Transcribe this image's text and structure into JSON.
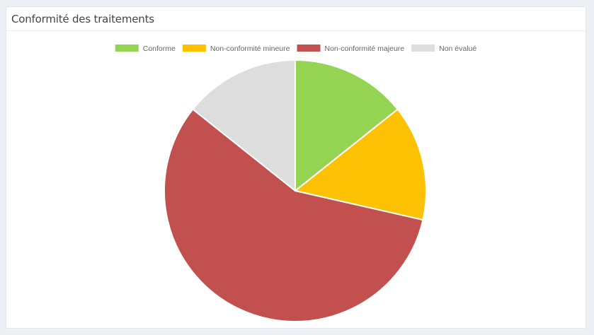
{
  "panel": {
    "title": "Conformité des traitements"
  },
  "chart_data": {
    "type": "pie",
    "title": "",
    "legend_position": "top",
    "categories": [
      "Conforme",
      "Non-conformité mineure",
      "Non-conformité majeure",
      "Non évalué"
    ],
    "values": [
      1,
      1,
      4,
      1
    ],
    "colors": [
      "#95d352",
      "#fdc103",
      "#c1504e",
      "#dddddd"
    ]
  }
}
